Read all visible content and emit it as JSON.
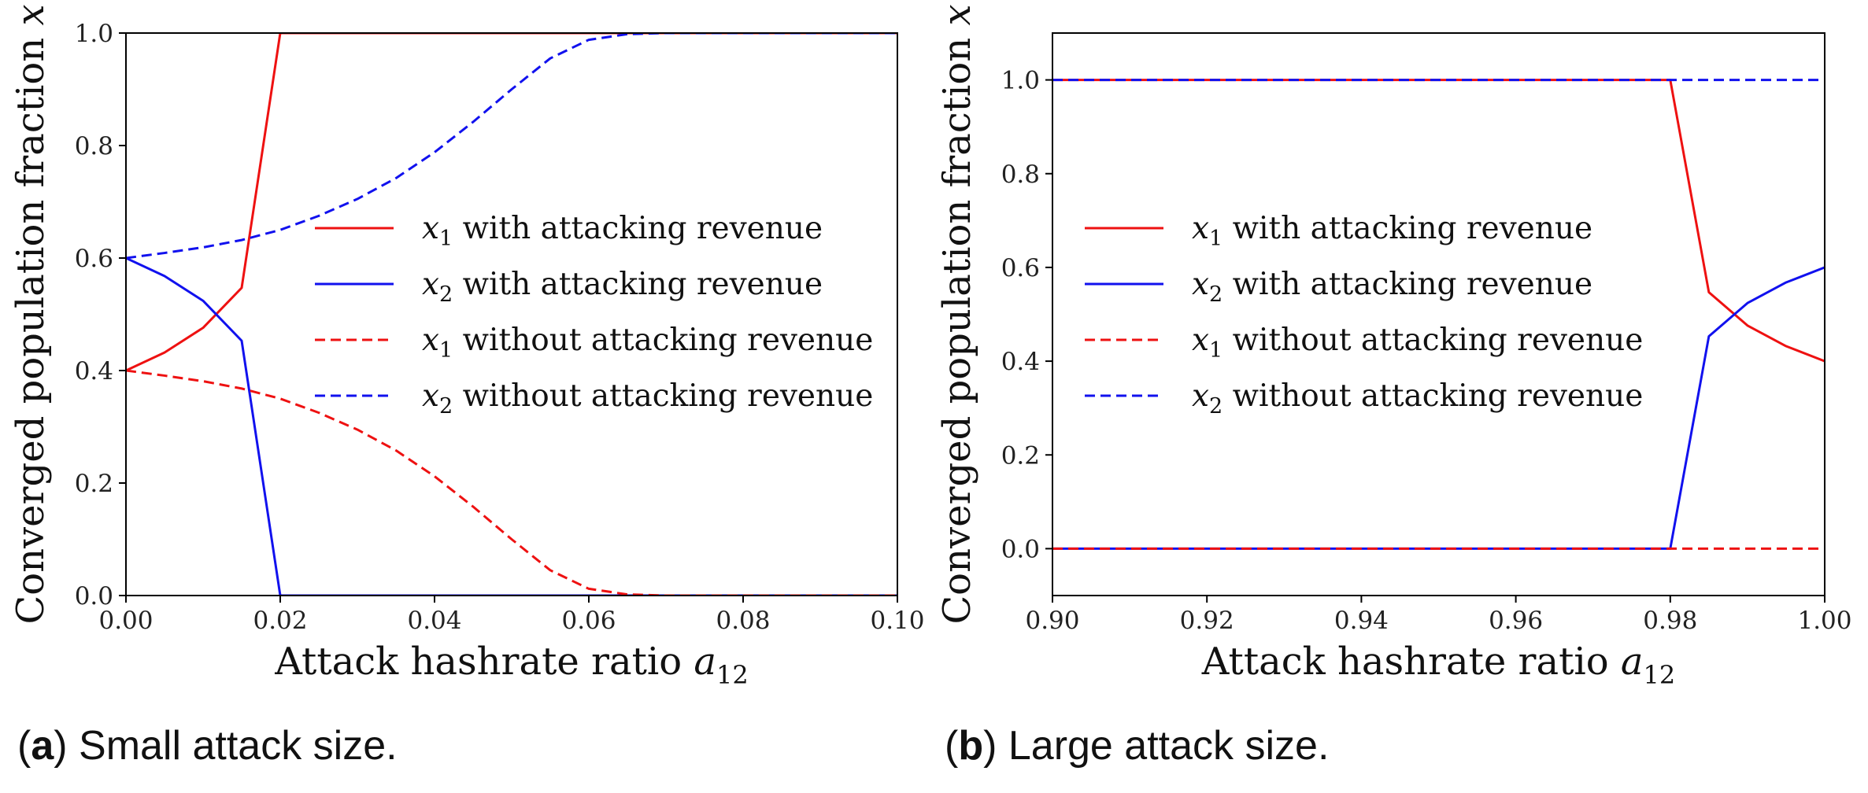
{
  "chart_data": [
    {
      "type": "line",
      "panel": "a",
      "caption_letter": "a",
      "caption_text": "Small attack size.",
      "xlabel": "Attack hashrate ratio a12",
      "ylabel": "Converged population fraction x",
      "xlim": [
        0.0,
        0.1
      ],
      "ylim": [
        0.0,
        1.0
      ],
      "xticks": [
        0.0,
        0.02,
        0.04,
        0.06,
        0.08,
        0.1
      ],
      "xtick_labels": [
        "0.00",
        "0.02",
        "0.04",
        "0.06",
        "0.08",
        "0.10"
      ],
      "yticks": [
        0.0,
        0.2,
        0.4,
        0.6,
        0.8,
        1.0
      ],
      "ytick_labels": [
        "0.0",
        "0.2",
        "0.4",
        "0.6",
        "0.8",
        "1.0"
      ],
      "legend_position": "center-right",
      "series": [
        {
          "name": "x1 with attacking revenue",
          "var": "x",
          "sub": "1",
          "rest": " with attacking revenue",
          "color": "#ee1111",
          "dash": "solid",
          "x": [
            0.0,
            0.005,
            0.01,
            0.015,
            0.02,
            0.1
          ],
          "y": [
            0.4,
            0.432,
            0.476,
            0.547,
            1.0,
            1.0
          ]
        },
        {
          "name": "x2 with attacking revenue",
          "var": "x",
          "sub": "2",
          "rest": " with attacking revenue",
          "color": "#1111ee",
          "dash": "solid",
          "x": [
            0.0,
            0.005,
            0.01,
            0.015,
            0.02,
            0.1
          ],
          "y": [
            0.6,
            0.568,
            0.524,
            0.453,
            0.0,
            0.0
          ]
        },
        {
          "name": "x1 without attacking revenue",
          "var": "x",
          "sub": "1",
          "rest": " without attacking revenue",
          "color": "#ee1111",
          "dash": "dashed",
          "x": [
            0.0,
            0.005,
            0.01,
            0.015,
            0.02,
            0.025,
            0.03,
            0.035,
            0.04,
            0.045,
            0.05,
            0.055,
            0.06,
            0.065,
            0.07,
            0.1
          ],
          "y": [
            0.4,
            0.391,
            0.381,
            0.368,
            0.35,
            0.325,
            0.295,
            0.258,
            0.212,
            0.158,
            0.1,
            0.045,
            0.012,
            0.002,
            0.0,
            0.0
          ]
        },
        {
          "name": "x2 without attacking revenue",
          "var": "x",
          "sub": "2",
          "rest": " without attacking revenue",
          "color": "#1111ee",
          "dash": "dashed",
          "x": [
            0.0,
            0.005,
            0.01,
            0.015,
            0.02,
            0.025,
            0.03,
            0.035,
            0.04,
            0.045,
            0.05,
            0.055,
            0.06,
            0.065,
            0.07,
            0.1
          ],
          "y": [
            0.6,
            0.609,
            0.619,
            0.632,
            0.65,
            0.675,
            0.705,
            0.742,
            0.788,
            0.842,
            0.9,
            0.955,
            0.988,
            0.998,
            1.0,
            1.0
          ]
        }
      ]
    },
    {
      "type": "line",
      "panel": "b",
      "caption_letter": "b",
      "caption_text": "Large attack size.",
      "xlabel": "Attack hashrate ratio a12",
      "ylabel": "Converged population fraction x",
      "xlim": [
        0.9,
        1.0
      ],
      "ylim": [
        -0.1,
        1.1
      ],
      "xticks": [
        0.9,
        0.92,
        0.94,
        0.96,
        0.98,
        1.0
      ],
      "xtick_labels": [
        "0.90",
        "0.92",
        "0.94",
        "0.96",
        "0.98",
        "1.00"
      ],
      "yticks": [
        0.0,
        0.2,
        0.4,
        0.6,
        0.8,
        1.0
      ],
      "ytick_labels": [
        "0.0",
        "0.2",
        "0.4",
        "0.6",
        "0.8",
        "1.0"
      ],
      "legend_position": "center-left",
      "series": [
        {
          "name": "x1 with attacking revenue",
          "var": "x",
          "sub": "1",
          "rest": " with attacking revenue",
          "color": "#ee1111",
          "dash": "solid",
          "x": [
            0.9,
            0.98,
            0.985,
            0.99,
            0.995,
            1.0
          ],
          "y": [
            1.0,
            1.0,
            0.547,
            0.476,
            0.432,
            0.4
          ]
        },
        {
          "name": "x2 with attacking revenue",
          "var": "x",
          "sub": "2",
          "rest": " with attacking revenue",
          "color": "#1111ee",
          "dash": "solid",
          "x": [
            0.9,
            0.98,
            0.985,
            0.99,
            0.995,
            1.0
          ],
          "y": [
            0.0,
            0.0,
            0.453,
            0.524,
            0.568,
            0.6
          ]
        },
        {
          "name": "x1 without attacking revenue",
          "var": "x",
          "sub": "1",
          "rest": " without attacking revenue",
          "color": "#ee1111",
          "dash": "dashed",
          "x": [
            0.9,
            1.0
          ],
          "y": [
            0.0,
            0.0
          ]
        },
        {
          "name": "x2 without attacking revenue",
          "var": "x",
          "sub": "2",
          "rest": " without attacking revenue",
          "color": "#1111ee",
          "dash": "dashed",
          "x": [
            0.9,
            1.0
          ],
          "y": [
            1.0,
            1.0
          ]
        }
      ]
    }
  ]
}
